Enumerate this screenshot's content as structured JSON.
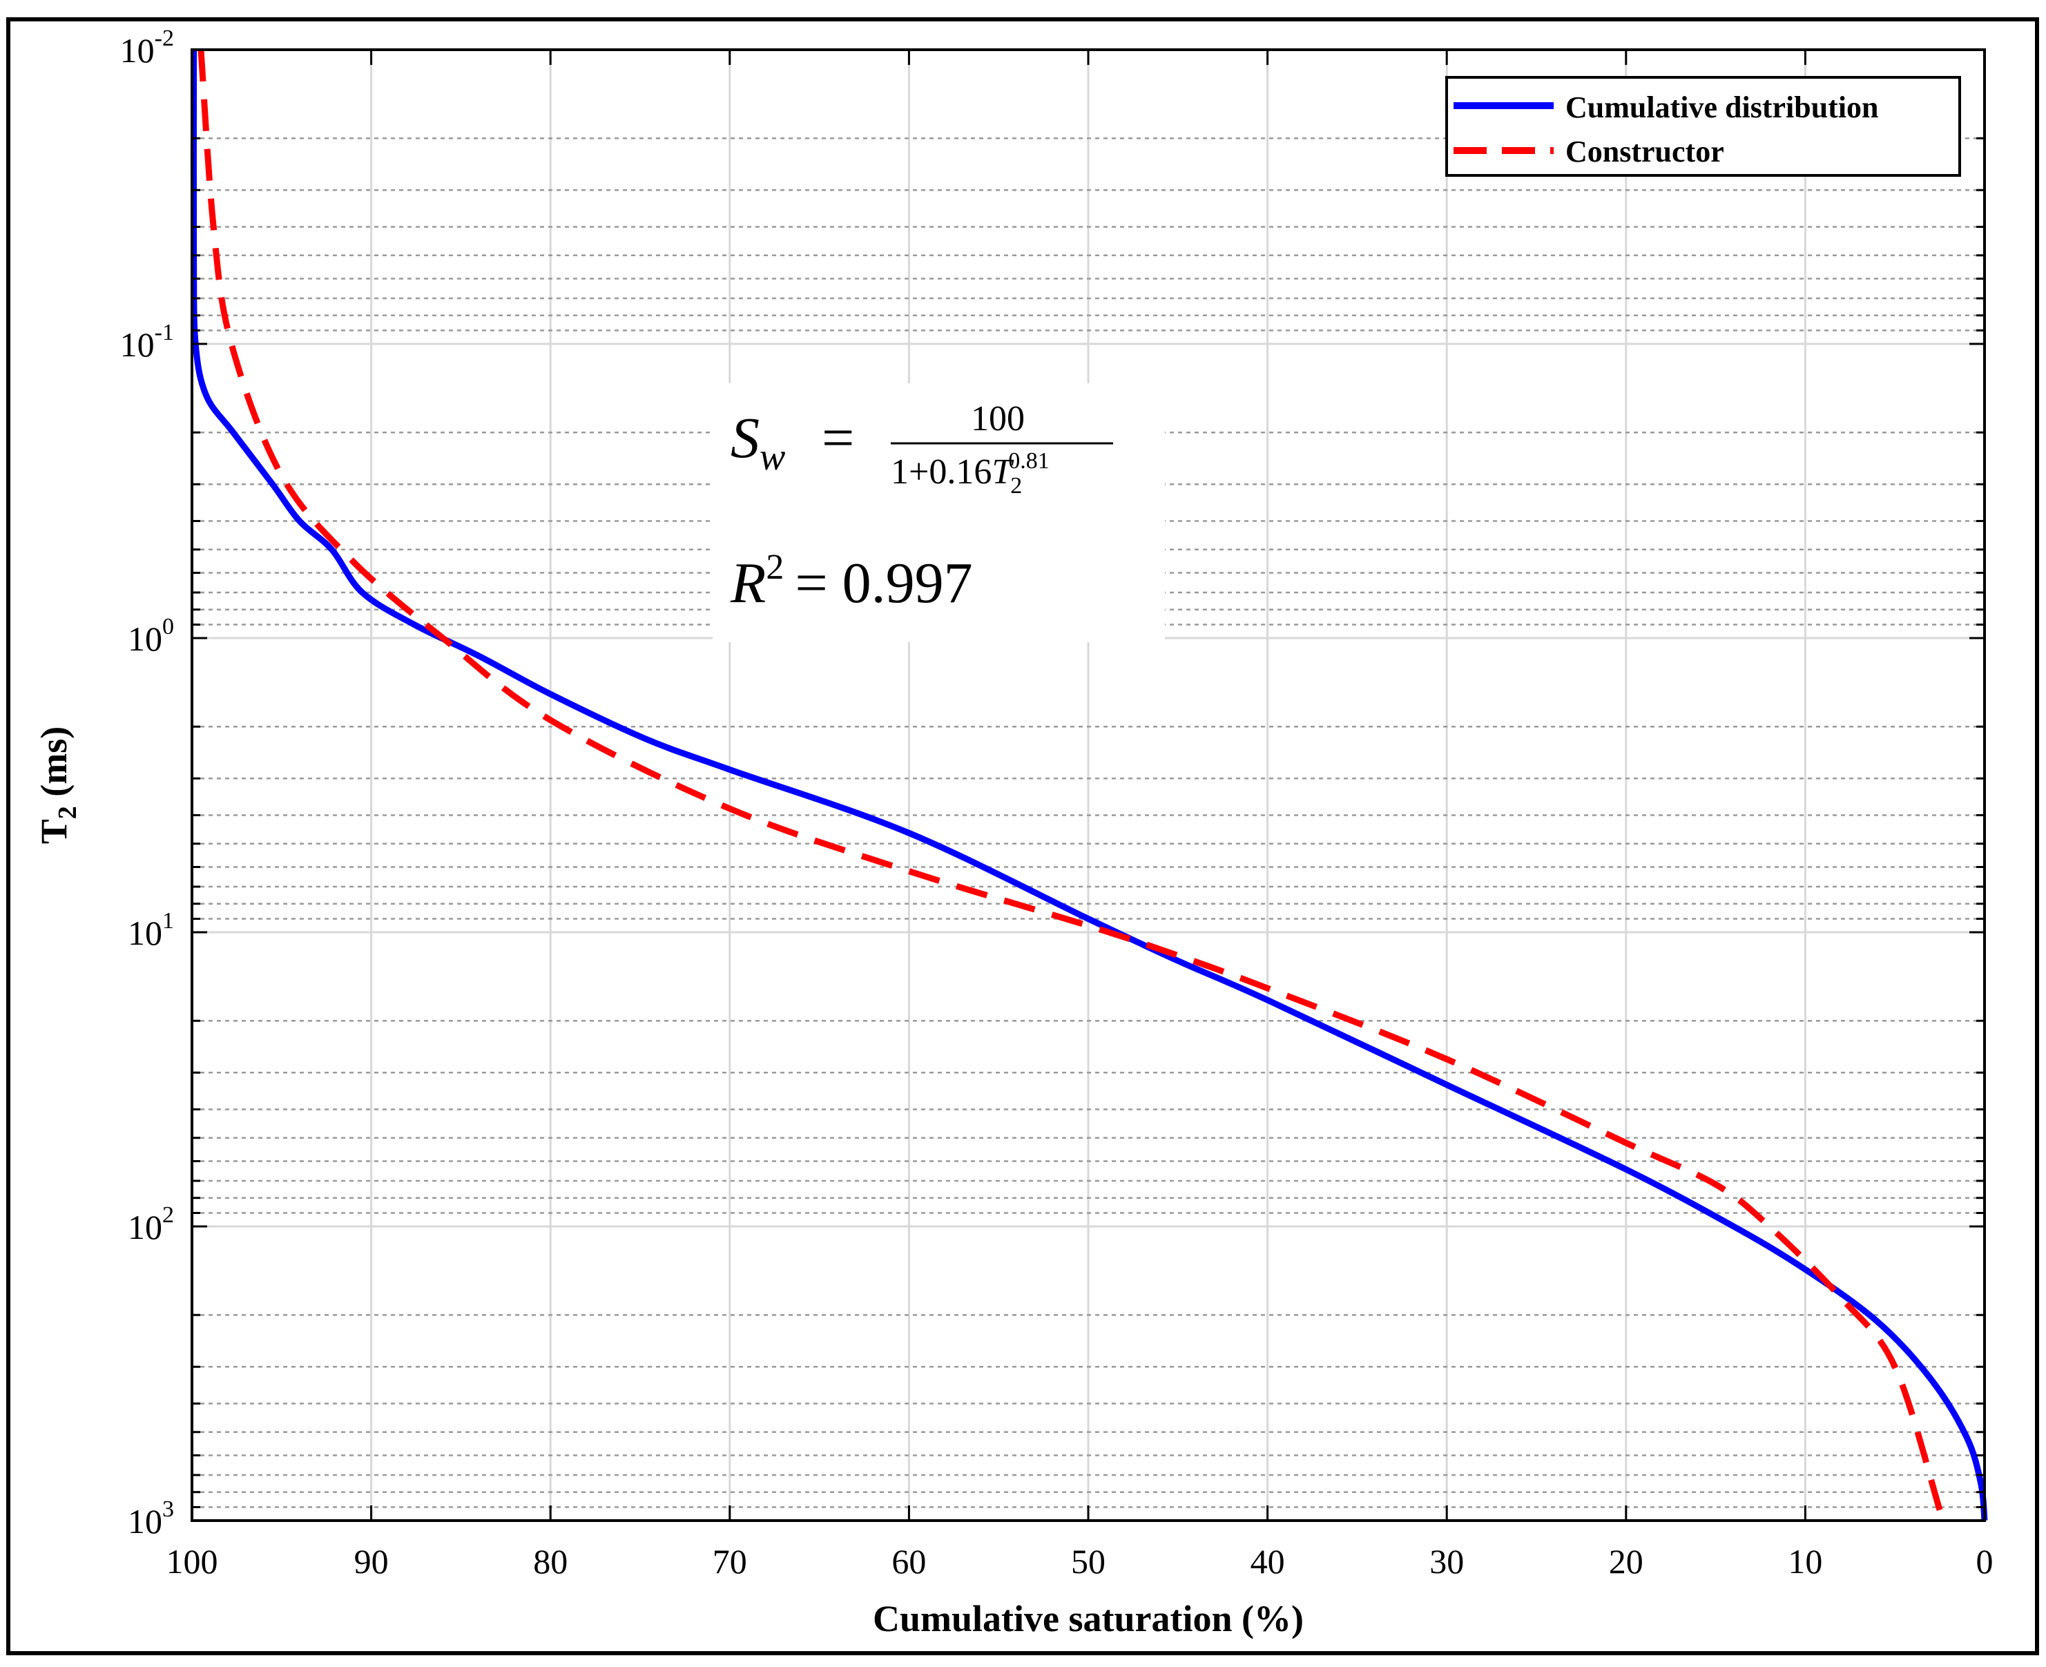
{
  "chart_data": {
    "type": "line",
    "title": "",
    "xlabel": "Cumulative saturation (%)",
    "ylabel": "T",
    "ylabel_sub": "2",
    "ylabel_unit": " (ms)",
    "x_reversed": true,
    "xlim": [
      0,
      100
    ],
    "ylim": [
      0.01,
      1000
    ],
    "y_scale": "log",
    "y_reversed": true,
    "grid": true,
    "legend_position": "top-right",
    "x_ticks": [
      "100",
      "90",
      "80",
      "70",
      "60",
      "50",
      "40",
      "30",
      "20",
      "10",
      "0"
    ],
    "y_ticks": [
      {
        "base": "10",
        "exp": "-2",
        "value": 0.01
      },
      {
        "base": "10",
        "exp": "-1",
        "value": 0.1
      },
      {
        "base": "10",
        "exp": "0",
        "value": 1
      },
      {
        "base": "10",
        "exp": "1",
        "value": 10
      },
      {
        "base": "10",
        "exp": "2",
        "value": 100
      },
      {
        "base": "10",
        "exp": "3",
        "value": 1000
      }
    ],
    "series": [
      {
        "name": "Cumulative distribution",
        "color": "#0000ff",
        "style": "solid",
        "points": [
          {
            "x": 99.9,
            "y": 0.01
          },
          {
            "x": 99.9,
            "y": 0.05
          },
          {
            "x": 99.8,
            "y": 0.1
          },
          {
            "x": 99.2,
            "y": 0.15
          },
          {
            "x": 97.7,
            "y": 0.2
          },
          {
            "x": 95.5,
            "y": 0.3
          },
          {
            "x": 94.0,
            "y": 0.4
          },
          {
            "x": 92.2,
            "y": 0.5
          },
          {
            "x": 90.5,
            "y": 0.7
          },
          {
            "x": 87.6,
            "y": 0.9
          },
          {
            "x": 84.0,
            "y": 1.15
          },
          {
            "x": 80.0,
            "y": 1.55
          },
          {
            "x": 74.7,
            "y": 2.2
          },
          {
            "x": 70.0,
            "y": 2.8
          },
          {
            "x": 60.0,
            "y": 4.6
          },
          {
            "x": 50.0,
            "y": 9.0
          },
          {
            "x": 45.0,
            "y": 12.5
          },
          {
            "x": 40.0,
            "y": 17.0
          },
          {
            "x": 30.0,
            "y": 33.0
          },
          {
            "x": 20.0,
            "y": 64.0
          },
          {
            "x": 14.0,
            "y": 100.0
          },
          {
            "x": 10.0,
            "y": 140.0
          },
          {
            "x": 6.0,
            "y": 210.0
          },
          {
            "x": 3.0,
            "y": 330.0
          },
          {
            "x": 1.0,
            "y": 520.0
          },
          {
            "x": 0.2,
            "y": 750.0
          },
          {
            "x": 0.0,
            "y": 1000.0
          }
        ]
      },
      {
        "name": "Constructor",
        "color": "#ff0000",
        "style": "dashed",
        "points": [
          {
            "x": 99.5,
            "y": 0.01
          },
          {
            "x": 98.8,
            "y": 0.04
          },
          {
            "x": 97.8,
            "y": 0.1
          },
          {
            "x": 95.0,
            "y": 0.28
          },
          {
            "x": 91.0,
            "y": 0.55
          },
          {
            "x": 86.0,
            "y": 1.0
          },
          {
            "x": 80.0,
            "y": 1.9
          },
          {
            "x": 70.0,
            "y": 3.8
          },
          {
            "x": 60.0,
            "y": 6.2
          },
          {
            "x": 50.0,
            "y": 9.5
          },
          {
            "x": 45.0,
            "y": 12.0
          },
          {
            "x": 40.0,
            "y": 15.5
          },
          {
            "x": 30.0,
            "y": 27.0
          },
          {
            "x": 20.0,
            "y": 52.0
          },
          {
            "x": 15.0,
            "y": 72.0
          },
          {
            "x": 12.0,
            "y": 100.0
          },
          {
            "x": 8.0,
            "y": 175.0
          },
          {
            "x": 5.0,
            "y": 300.0
          },
          {
            "x": 2.5,
            "y": 920.0
          }
        ]
      }
    ],
    "annotations": {
      "equation_lhs": "S",
      "equation_lhs_sub": "w",
      "equation_eq": "=",
      "equation_num": "100",
      "equation_den_a": "1+0.16",
      "equation_den_T": "T",
      "equation_den_sub": "2",
      "equation_den_exp": "0.81",
      "r2_lhs": "R",
      "r2_exp": "2",
      "r2_rhs": "= 0.997"
    }
  }
}
